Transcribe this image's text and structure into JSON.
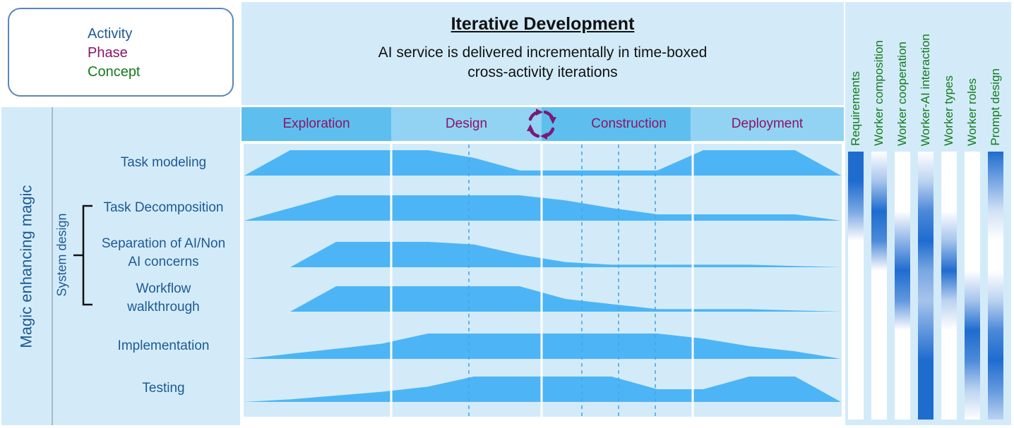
{
  "legend": {
    "items": [
      {
        "label": "Activity",
        "color": "#1d5a94"
      },
      {
        "label": "Phase",
        "color": "#8a1466"
      },
      {
        "label": "Concept",
        "color": "#137a1e"
      }
    ]
  },
  "header": {
    "title": "Iterative Development",
    "subtitle_line1": "AI service is delivered incrementally in time-boxed",
    "subtitle_line2": "cross-activity iterations"
  },
  "sidebar": {
    "main_label": "Magic enhancing magic",
    "group_label": "System design",
    "activities": [
      {
        "line1": "Task modeling",
        "line2": ""
      },
      {
        "line1": "Task Decomposition",
        "line2": ""
      },
      {
        "line1": "Separation of AI/Non",
        "line2": "AI concerns"
      },
      {
        "line1": "Workflow",
        "line2": "walkthrough"
      },
      {
        "line1": "Implementation",
        "line2": ""
      },
      {
        "line1": "Testing",
        "line2": ""
      }
    ]
  },
  "phases": [
    {
      "label": "Exploration",
      "color": "#5ebfee"
    },
    {
      "label": "Design",
      "color": "#92d3f3"
    },
    {
      "label": "Construction",
      "color": "#5ebfee"
    },
    {
      "label": "Deployment",
      "color": "#92d3f3"
    }
  ],
  "concepts": [
    {
      "label": "Requirements",
      "intensity": [
        1,
        1,
        0.6,
        0,
        0,
        0,
        0,
        0,
        0,
        0
      ]
    },
    {
      "label": "Worker composition",
      "intensity": [
        0,
        0.4,
        1,
        0.8,
        0,
        0,
        0,
        0,
        0,
        0
      ]
    },
    {
      "label": "Worker cooperation",
      "intensity": [
        0,
        0,
        0,
        0.5,
        1,
        0.7,
        0,
        0,
        0,
        0
      ]
    },
    {
      "label": "Worker-AI interaction",
      "intensity": [
        0,
        0.3,
        0.8,
        1,
        0.6,
        0.4,
        0.7,
        1,
        1,
        1
      ]
    },
    {
      "label": "Worker types",
      "intensity": [
        0,
        0,
        0,
        0.4,
        1,
        0.3,
        0,
        0,
        0,
        0
      ]
    },
    {
      "label": "Worker roles",
      "intensity": [
        0,
        0,
        0,
        0,
        0,
        0.4,
        1,
        0.8,
        0.3,
        0
      ]
    },
    {
      "label": "Prompt design",
      "intensity": [
        1,
        0.6,
        0.2,
        0,
        0,
        0.3,
        0.8,
        1,
        0.7,
        0.3
      ]
    }
  ],
  "activity_levels": [
    [
      0,
      1,
      1,
      1,
      1,
      0.7,
      0.2,
      0.2,
      0.2,
      0.2,
      1,
      1,
      1,
      0
    ],
    [
      0,
      0.5,
      1,
      1,
      1,
      1,
      1,
      0.8,
      0.5,
      0.25,
      0.25,
      0.25,
      0.25,
      0
    ],
    [
      0,
      0,
      1,
      1,
      1,
      0.9,
      0.5,
      0.2,
      0.1,
      0.1,
      0.1,
      0.1,
      0.05,
      0
    ],
    [
      0,
      0,
      1,
      1,
      1,
      1,
      1,
      0.5,
      0.3,
      0.1,
      0.1,
      0.1,
      0.05,
      0
    ],
    [
      0,
      0.2,
      0.4,
      0.6,
      1,
      1,
      1,
      1,
      1,
      1,
      0.8,
      0.5,
      0.3,
      0
    ],
    [
      0,
      0.1,
      0.25,
      0.4,
      0.6,
      1,
      1,
      1,
      1,
      0.5,
      0.5,
      1,
      1,
      0
    ]
  ],
  "colors": {
    "panel_bg": "#d3ebf9",
    "activity_fill": "#4db5f5",
    "concept_fill": "#1f6ccf",
    "cycle_arrow": "#7a1a74",
    "activity_text": "#1d5a94",
    "phase_text": "#8a1466",
    "concept_text": "#137a1e"
  },
  "icons": {
    "iteration": "cycle-arrows-icon"
  }
}
